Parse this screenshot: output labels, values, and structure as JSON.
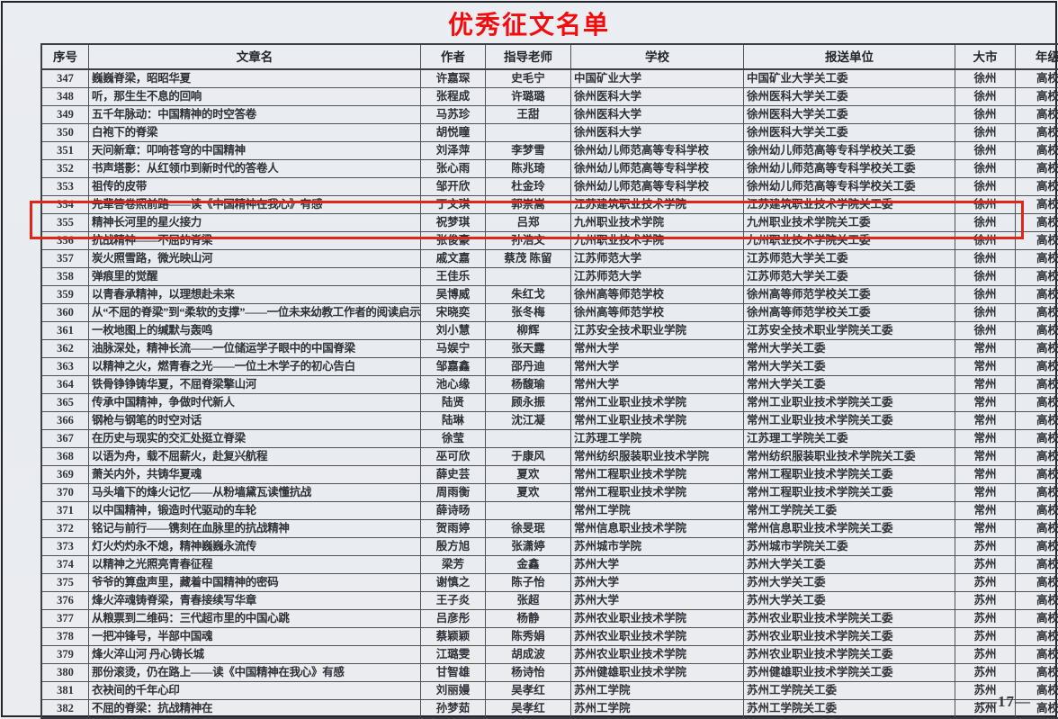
{
  "title": "优秀征文名单",
  "title_color": "#f40b0b",
  "highlight": {
    "rows": [
      355,
      356
    ],
    "color": "#e02618"
  },
  "page_number": "—17—",
  "table": {
    "columns": [
      {
        "key": "no",
        "label": "序号"
      },
      {
        "key": "title",
        "label": "文章名"
      },
      {
        "key": "author",
        "label": "作者"
      },
      {
        "key": "advisor",
        "label": "指导老师"
      },
      {
        "key": "school",
        "label": "学校"
      },
      {
        "key": "unit",
        "label": "报送单位"
      },
      {
        "key": "city",
        "label": "大市"
      },
      {
        "key": "grade",
        "label": "年级"
      }
    ],
    "rows": [
      {
        "no": "347",
        "title": "巍巍脊梁，昭昭华夏",
        "author": "许嘉琛",
        "advisor": "史毛宁",
        "school": "中国矿业大学",
        "unit": "中国矿业大学关工委",
        "city": "徐州",
        "grade": "高校"
      },
      {
        "no": "348",
        "title": "听，那生生不息的回响",
        "author": "张程成",
        "advisor": "许璐璐",
        "school": "徐州医科大学",
        "unit": "徐州医科大学关工委",
        "city": "徐州",
        "grade": "高校"
      },
      {
        "no": "349",
        "title": "五千年脉动：中国精神的时空答卷",
        "author": "马苏珍",
        "advisor": "王甜",
        "school": "徐州医科大学",
        "unit": "徐州医科大学关工委",
        "city": "徐州",
        "grade": "高校"
      },
      {
        "no": "350",
        "title": "白袍下的脊梁",
        "author": "胡悦瞳",
        "advisor": "",
        "school": "徐州医科大学",
        "unit": "徐州医科大学关工委",
        "city": "徐州",
        "grade": "高校"
      },
      {
        "no": "351",
        "title": "天问新章：叩响苍穹的中国精神",
        "author": "刘泽萍",
        "advisor": "李梦雪",
        "school": "徐州幼儿师范高等专科学校",
        "unit": "徐州幼儿师范高等专科学校关工委",
        "city": "徐州",
        "grade": "高校"
      },
      {
        "no": "352",
        "title": "书声塔影：从红领巾到新时代的答卷人",
        "author": "张心雨",
        "advisor": "陈兆琦",
        "school": "徐州幼儿师范高等专科学校",
        "unit": "徐州幼儿师范高等专科学校关工委",
        "city": "徐州",
        "grade": "高校"
      },
      {
        "no": "353",
        "title": "祖传的皮带",
        "author": "邹开欣",
        "advisor": "杜金玲",
        "school": "徐州幼儿师范高等专科学校",
        "unit": "徐州幼儿师范高等专科学校关工委",
        "city": "徐州",
        "grade": "高校"
      },
      {
        "no": "354",
        "title": "先辈答卷照前路——读《中国精神在我心》有感",
        "author": "丁文琪",
        "advisor": "郭崇嵩",
        "school": "江苏建筑职业技术学院",
        "unit": "江苏建筑职业技术学院关工委",
        "city": "徐州",
        "grade": "高校"
      },
      {
        "no": "355",
        "title": "精神长河里的星火接力",
        "author": "祝梦琪",
        "advisor": "吕郑",
        "school": "九州职业技术学院",
        "unit": "九州职业技术学院关工委",
        "city": "徐州",
        "grade": "高校"
      },
      {
        "no": "356",
        "title": "抗战精神——不屈的脊梁",
        "author": "张俊豪",
        "advisor": "孙浩文",
        "school": "九州职业技术学院",
        "unit": "九州职业技术学院关工委",
        "city": "徐州",
        "grade": "高校"
      },
      {
        "no": "357",
        "title": "炭火照雪路，微光映山河",
        "author": "戚文嘉",
        "advisor": "蔡茂 陈留",
        "school": "江苏师范大学",
        "unit": "江苏师范大学关工委",
        "city": "徐州",
        "grade": "高校"
      },
      {
        "no": "358",
        "title": "弹痕里的觉醒",
        "author": "王佳乐",
        "advisor": "",
        "school": "江苏师范大学",
        "unit": "江苏师范大学关工委",
        "city": "徐州",
        "grade": "高校"
      },
      {
        "no": "359",
        "title": "以青春承精神，以理想赴未来",
        "author": "吴博威",
        "advisor": "朱红戈",
        "school": "徐州高等师范学校",
        "unit": "徐州高等师范学校关工委",
        "city": "徐州",
        "grade": "高校"
      },
      {
        "no": "360",
        "title": "从“不屈的脊梁”到“柔软的支撑”——一位未来幼教工作者的阅读启示",
        "author": "宋晓奕",
        "advisor": "张冬梅",
        "school": "徐州高等师范学校",
        "unit": "徐州高等师范学校关工委",
        "city": "徐州",
        "grade": "高校"
      },
      {
        "no": "361",
        "title": "一枚地图上的缄默与轰鸣",
        "author": "刘小慧",
        "advisor": "柳辉",
        "school": "江苏安全技术职业学院",
        "unit": "江苏安全技术职业学院关工委",
        "city": "徐州",
        "grade": "高校"
      },
      {
        "no": "362",
        "title": "油脉深处，精神长流——一位储运学子眼中的中国脊梁",
        "author": "马娱宁",
        "advisor": "张天露",
        "school": "常州大学",
        "unit": "常州大学关工委",
        "city": "常州",
        "grade": "高校"
      },
      {
        "no": "363",
        "title": "以精神之火，燃青春之光——一位土木学子的初心告白",
        "author": "邹嘉鑫",
        "advisor": "邵丹迪",
        "school": "常州大学",
        "unit": "常州大学关工委",
        "city": "常州",
        "grade": "高校"
      },
      {
        "no": "364",
        "title": "铁骨铮铮铸华夏，不屈脊梁擎山河",
        "author": "池心缘",
        "advisor": "杨馥瑜",
        "school": "常州大学",
        "unit": "常州大学关工委",
        "city": "常州",
        "grade": "高校"
      },
      {
        "no": "365",
        "title": "传承中国精神，争做时代新人",
        "author": "陆贤",
        "advisor": "顾永振",
        "school": "常州工业职业技术学院",
        "unit": "常州工业职业技术学院关工委",
        "city": "常州",
        "grade": "高校"
      },
      {
        "no": "366",
        "title": "钢枪与钢笔的时空对话",
        "author": "陆琳",
        "advisor": "沈江凝",
        "school": "常州工业职业技术学院",
        "unit": "常州工业职业技术学院关工委",
        "city": "常州",
        "grade": "高校"
      },
      {
        "no": "367",
        "title": "在历史与现实的交汇处挺立脊梁",
        "author": "徐莹",
        "advisor": "",
        "school": "江苏理工学院",
        "unit": "江苏理工学院关工委",
        "city": "常州",
        "grade": "高校"
      },
      {
        "no": "368",
        "title": "以语为舟，载不屈薪火，赴复兴航程",
        "author": "巫可欣",
        "advisor": "于康风",
        "school": "常州纺织服装职业技术学院",
        "unit": "常州纺织服装职业技术学院关工委",
        "city": "常州",
        "grade": "高校"
      },
      {
        "no": "369",
        "title": "萧关内外，共铸华夏魂",
        "author": "薛史芸",
        "advisor": "夏欢",
        "school": "常州工程职业技术学院",
        "unit": "常州工程职业技术学院关工委",
        "city": "常州",
        "grade": "高校"
      },
      {
        "no": "370",
        "title": "马头墙下的烽火记忆——从粉墙黛瓦读懂抗战",
        "author": "周雨衡",
        "advisor": "夏欢",
        "school": "常州工程职业技术学院",
        "unit": "常州工程职业技术学院关工委",
        "city": "常州",
        "grade": "高校"
      },
      {
        "no": "371",
        "title": "以中国精神，锻造时代驱动的车轮",
        "author": "薛诗旸",
        "advisor": "",
        "school": "常州工学院",
        "unit": "常州工学院关工委",
        "city": "常州",
        "grade": "高校"
      },
      {
        "no": "372",
        "title": "铭记与前行——镌刻在血脉里的抗战精神",
        "author": "贺雨婷",
        "advisor": "徐旻珉",
        "school": "常州信息职业技术学院",
        "unit": "常州信息职业技术学院关工委",
        "city": "常州",
        "grade": "高校"
      },
      {
        "no": "373",
        "title": "灯火灼灼永不熄，精神巍巍永流传",
        "author": "殷方旭",
        "advisor": "张潇婷",
        "school": "苏州城市学院",
        "unit": "苏州城市学院关工委",
        "city": "苏州",
        "grade": "高校"
      },
      {
        "no": "374",
        "title": "以精神之光照亮青春征程",
        "author": "梁芳",
        "advisor": "金鑫",
        "school": "苏州大学",
        "unit": "苏州大学关工委",
        "city": "苏州",
        "grade": "高校"
      },
      {
        "no": "375",
        "title": "爷爷的算盘声里，藏着中国精神的密码",
        "author": "谢慎之",
        "advisor": "陈子怡",
        "school": "苏州大学",
        "unit": "苏州大学关工委",
        "city": "苏州",
        "grade": "高校"
      },
      {
        "no": "376",
        "title": "烽火淬魂铸脊梁，青春接续写华章",
        "author": "王子炎",
        "advisor": "张超",
        "school": "苏州大学",
        "unit": "苏州大学关工委",
        "city": "苏州",
        "grade": "高校"
      },
      {
        "no": "377",
        "title": "从粮票到二维码：三代超市里的中国心跳",
        "author": "吕彦彤",
        "advisor": "杨静",
        "school": "苏州农业职业技术学院",
        "unit": "苏州农业职业技术学院关工委",
        "city": "苏州",
        "grade": "高校"
      },
      {
        "no": "378",
        "title": "一把冲锋号，半部中国魂",
        "author": "蔡颖颖",
        "advisor": "陈秀娟",
        "school": "苏州农业职业技术学院",
        "unit": "苏州农业职业技术学院关工委",
        "city": "苏州",
        "grade": "高校"
      },
      {
        "no": "379",
        "title": "烽火淬山河 丹心铸长城",
        "author": "江璐雯",
        "advisor": "胡成波",
        "school": "苏州农业职业技术学院",
        "unit": "苏州农业职业技术学院关工委",
        "city": "苏州",
        "grade": "高校"
      },
      {
        "no": "380",
        "title": "那份滚烫，仍在路上——读《中国精神在我心》有感",
        "author": "甘智雄",
        "advisor": "杨诗怡",
        "school": "苏州健雄职业技术学院",
        "unit": "苏州健雄职业技术学院关工委",
        "city": "苏州",
        "grade": "高校"
      },
      {
        "no": "381",
        "title": "衣袂间的千年心印",
        "author": "刘丽嫚",
        "advisor": "吴孝红",
        "school": "苏州工学院",
        "unit": "苏州工学院关工委",
        "city": "苏州",
        "grade": "高校"
      },
      {
        "no": "382",
        "title": "不屈的脊梁：抗战精神在",
        "author": "孙梦茹",
        "advisor": "吴孝红",
        "school": "苏州工学院",
        "unit": "苏州工学院关工委",
        "city": "苏州",
        "grade": "高校"
      }
    ]
  }
}
